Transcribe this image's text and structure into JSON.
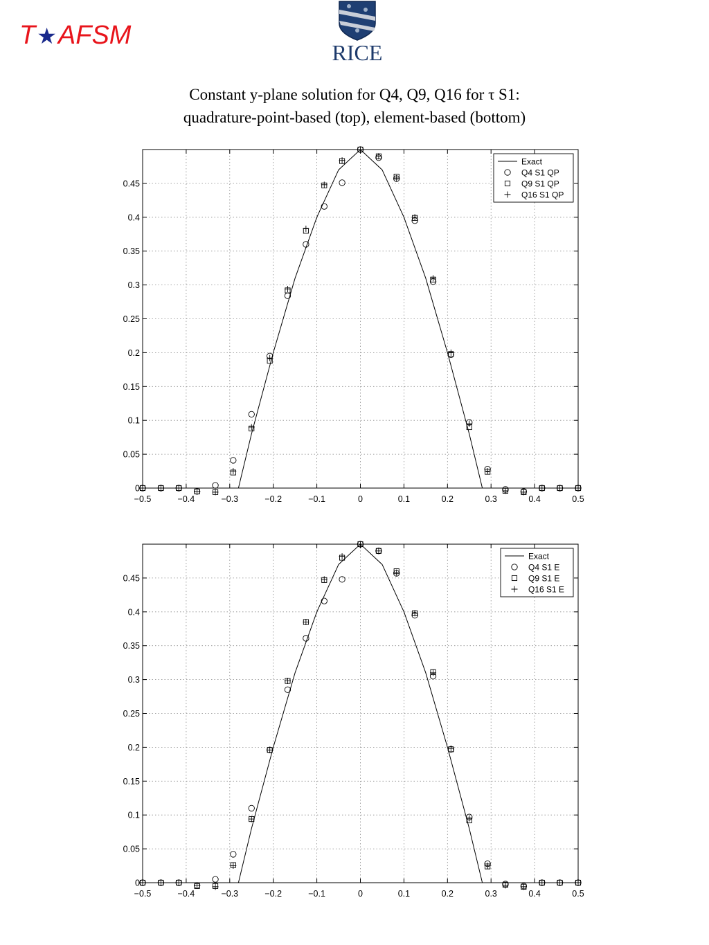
{
  "header": {
    "brand_t": "T",
    "brand_star": "★",
    "brand_rest": "AFSM",
    "logo_text": "RICE",
    "title_line1": "Constant y-plane solution for Q4, Q9, Q16 for τ S1:",
    "title_line2": "quadrature-point-based (top), element-based (bottom)"
  },
  "chart_data": [
    {
      "type": "scatter",
      "title": "",
      "xlabel": "",
      "ylabel": "",
      "xlim": [
        -0.5,
        0.5
      ],
      "ylim": [
        0,
        0.5
      ],
      "x_ticks": [
        -0.5,
        -0.4,
        -0.3,
        -0.2,
        -0.1,
        0,
        0.1,
        0.2,
        0.3,
        0.4,
        0.5
      ],
      "x_tick_labels": [
        "−0.5",
        "−0.4",
        "−0.3",
        "−0.2",
        "−0.1",
        "0",
        "0.1",
        "0.2",
        "0.3",
        "0.4",
        "0.5"
      ],
      "y_ticks": [
        0,
        0.05,
        0.1,
        0.15,
        0.2,
        0.25,
        0.3,
        0.35,
        0.4,
        0.45
      ],
      "y_tick_labels": [
        "0",
        "0.05",
        "0.1",
        "0.15",
        "0.2",
        "0.25",
        "0.3",
        "0.35",
        "0.4",
        "0.45"
      ],
      "grid": true,
      "legend_position": "top-right",
      "series": [
        {
          "name": "Exact",
          "marker": "line",
          "x": [
            -0.5,
            -0.28,
            -0.25,
            -0.2,
            -0.15,
            -0.1,
            -0.05,
            0,
            0.05,
            0.1,
            0.15,
            0.2,
            0.25,
            0.28,
            0.5
          ],
          "y": [
            0,
            0,
            0.08,
            0.2,
            0.31,
            0.4,
            0.47,
            0.5,
            0.47,
            0.4,
            0.31,
            0.2,
            0.08,
            0,
            0
          ]
        },
        {
          "name": "Q4 S1 QP",
          "marker": "circle",
          "x": [
            -0.5,
            -0.458,
            -0.417,
            -0.375,
            -0.333,
            -0.292,
            -0.25,
            -0.208,
            -0.167,
            -0.125,
            -0.083,
            -0.042,
            0,
            0.042,
            0.083,
            0.125,
            0.167,
            0.208,
            0.25,
            0.292,
            0.333,
            0.375,
            0.417,
            0.458,
            0.5
          ],
          "y": [
            0,
            0,
            0,
            -0.005,
            0.004,
            0.041,
            0.109,
            0.195,
            0.284,
            0.36,
            0.416,
            0.451,
            0.5,
            0.488,
            0.457,
            0.395,
            0.305,
            0.197,
            0.097,
            0.028,
            -0.002,
            -0.005,
            0,
            0,
            0
          ]
        },
        {
          "name": "Q9 S1 QP",
          "marker": "square",
          "x": [
            -0.5,
            -0.458,
            -0.417,
            -0.375,
            -0.333,
            -0.292,
            -0.25,
            -0.208,
            -0.167,
            -0.125,
            -0.083,
            -0.042,
            0,
            0.042,
            0.083,
            0.125,
            0.167,
            0.208,
            0.25,
            0.292,
            0.333,
            0.375,
            0.417,
            0.458,
            0.5
          ],
          "y": [
            0,
            0,
            0,
            -0.005,
            -0.006,
            0.023,
            0.088,
            0.188,
            0.292,
            0.38,
            0.447,
            0.483,
            0.5,
            0.49,
            0.46,
            0.399,
            0.308,
            0.198,
            0.09,
            0.024,
            -0.004,
            -0.006,
            0,
            0,
            0
          ]
        },
        {
          "name": "Q16 S1 QP",
          "marker": "plus",
          "x": [
            -0.5,
            -0.458,
            -0.417,
            -0.375,
            -0.333,
            -0.292,
            -0.25,
            -0.208,
            -0.167,
            -0.125,
            -0.083,
            -0.042,
            0,
            0.042,
            0.083,
            0.125,
            0.167,
            0.208,
            0.25,
            0.292,
            0.333,
            0.375,
            0.417,
            0.458,
            0.5
          ],
          "y": [
            0,
            0,
            0,
            -0.005,
            -0.006,
            0.025,
            0.09,
            0.192,
            0.294,
            0.383,
            0.448,
            0.484,
            0.5,
            0.49,
            0.458,
            0.4,
            0.31,
            0.2,
            0.095,
            0.025,
            -0.004,
            -0.006,
            0,
            0,
            0
          ]
        }
      ]
    },
    {
      "type": "scatter",
      "title": "",
      "xlabel": "",
      "ylabel": "",
      "xlim": [
        -0.5,
        0.5
      ],
      "ylim": [
        0,
        0.5
      ],
      "x_ticks": [
        -0.5,
        -0.4,
        -0.3,
        -0.2,
        -0.1,
        0,
        0.1,
        0.2,
        0.3,
        0.4,
        0.5
      ],
      "x_tick_labels": [
        "−0.5",
        "−0.4",
        "−0.3",
        "−0.2",
        "−0.1",
        "0",
        "0.1",
        "0.2",
        "0.3",
        "0.4",
        "0.5"
      ],
      "y_ticks": [
        0,
        0.05,
        0.1,
        0.15,
        0.2,
        0.25,
        0.3,
        0.35,
        0.4,
        0.45
      ],
      "y_tick_labels": [
        "0",
        "0.05",
        "0.1",
        "0.15",
        "0.2",
        "0.25",
        "0.3",
        "0.35",
        "0.4",
        "0.45"
      ],
      "grid": true,
      "legend_position": "top-right",
      "series": [
        {
          "name": "Exact",
          "marker": "line",
          "x": [
            -0.5,
            -0.28,
            -0.25,
            -0.2,
            -0.15,
            -0.1,
            -0.05,
            0,
            0.05,
            0.1,
            0.15,
            0.2,
            0.25,
            0.28,
            0.5
          ],
          "y": [
            0,
            0,
            0.08,
            0.2,
            0.31,
            0.4,
            0.47,
            0.5,
            0.47,
            0.4,
            0.31,
            0.2,
            0.08,
            0,
            0
          ]
        },
        {
          "name": "Q4  S1 E",
          "marker": "circle",
          "x": [
            -0.5,
            -0.458,
            -0.417,
            -0.375,
            -0.333,
            -0.292,
            -0.25,
            -0.208,
            -0.167,
            -0.125,
            -0.083,
            -0.042,
            0,
            0.042,
            0.083,
            0.125,
            0.167,
            0.208,
            0.25,
            0.292,
            0.333,
            0.375,
            0.417,
            0.458,
            0.5
          ],
          "y": [
            0,
            0,
            0,
            -0.004,
            0.005,
            0.042,
            0.11,
            0.196,
            0.285,
            0.361,
            0.416,
            0.448,
            0.5,
            0.49,
            0.457,
            0.395,
            0.305,
            0.197,
            0.097,
            0.028,
            -0.002,
            -0.005,
            0,
            0,
            0
          ]
        },
        {
          "name": "Q9  S1 E",
          "marker": "square",
          "x": [
            -0.5,
            -0.458,
            -0.417,
            -0.375,
            -0.333,
            -0.292,
            -0.25,
            -0.208,
            -0.167,
            -0.125,
            -0.083,
            -0.042,
            0,
            0.042,
            0.083,
            0.125,
            0.167,
            0.208,
            0.25,
            0.292,
            0.333,
            0.375,
            0.417,
            0.458,
            0.5
          ],
          "y": [
            0,
            0,
            0,
            -0.005,
            -0.005,
            0.026,
            0.094,
            0.196,
            0.298,
            0.385,
            0.447,
            0.48,
            0.5,
            0.49,
            0.46,
            0.398,
            0.311,
            0.197,
            0.092,
            0.024,
            -0.003,
            -0.006,
            0,
            0,
            0
          ]
        },
        {
          "name": "Q16 S1 E",
          "marker": "plus",
          "x": [
            -0.5,
            -0.458,
            -0.417,
            -0.375,
            -0.333,
            -0.292,
            -0.25,
            -0.208,
            -0.167,
            -0.125,
            -0.083,
            -0.042,
            0,
            0.042,
            0.083,
            0.125,
            0.167,
            0.208,
            0.25,
            0.292,
            0.333,
            0.375,
            0.417,
            0.458,
            0.5
          ],
          "y": [
            0,
            0,
            0,
            -0.004,
            -0.006,
            0.025,
            0.094,
            0.196,
            0.298,
            0.385,
            0.448,
            0.482,
            0.5,
            0.49,
            0.458,
            0.398,
            0.31,
            0.198,
            0.095,
            0.025,
            -0.004,
            -0.006,
            0,
            0,
            0
          ]
        }
      ]
    }
  ]
}
